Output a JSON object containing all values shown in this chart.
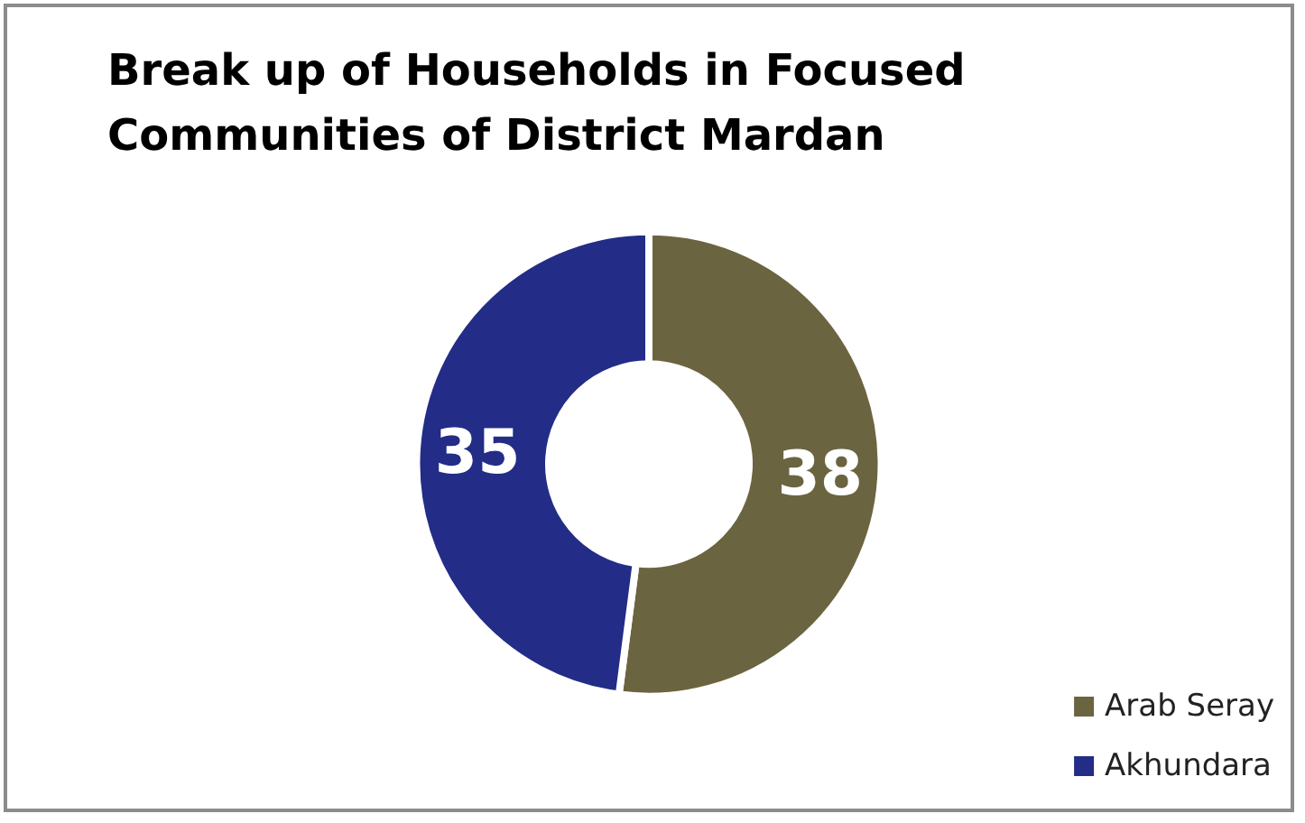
{
  "chart_data": {
    "type": "donut",
    "title": "Break up of Households in Focused Communities of District Mardan",
    "categories": [
      "Arab Seray",
      "Akhundara"
    ],
    "values": [
      38,
      35
    ],
    "colors": [
      "#6b6440",
      "#232c86"
    ],
    "data_labels": true,
    "legend": "bottom right"
  }
}
